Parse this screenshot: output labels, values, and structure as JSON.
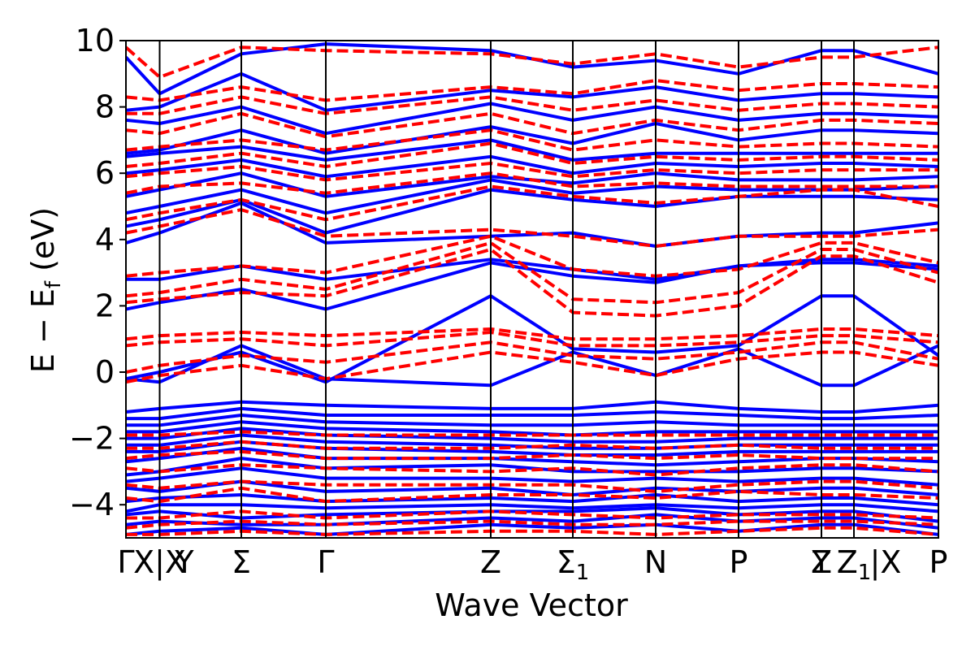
{
  "chart_data": {
    "type": "line",
    "xlabel": "Wave Vector",
    "ylabel_main": "E − E",
    "ylabel_sub": "f",
    "ylabel_unit": " (eV)",
    "ylim": [
      -5,
      10
    ],
    "yticks": [
      {
        "value": -4,
        "label": "−4"
      },
      {
        "value": -2,
        "label": "−2"
      },
      {
        "value": 0,
        "label": "0"
      },
      {
        "value": 2,
        "label": "2"
      },
      {
        "value": 4,
        "label": "4"
      },
      {
        "value": 6,
        "label": "6"
      },
      {
        "value": 8,
        "label": "8"
      },
      {
        "value": 10,
        "label": "10"
      }
    ],
    "xlim": [
      0,
      1
    ],
    "kpoints": [
      {
        "x": 0.0,
        "label": "Γ"
      },
      {
        "x": 0.0415,
        "label": "X|X"
      },
      {
        "x": 0.072,
        "label": "Y"
      },
      {
        "x": 0.142,
        "label": "Σ"
      },
      {
        "x": 0.246,
        "label": "Γ"
      },
      {
        "x": 0.449,
        "label": "Z"
      },
      {
        "x": 0.55,
        "label": "Σ",
        "sub": "1"
      },
      {
        "x": 0.652,
        "label": "N"
      },
      {
        "x": 0.754,
        "label": "P"
      },
      {
        "x": 0.856,
        "label": "Y"
      },
      {
        "x": 0.856,
        "label": "Z"
      },
      {
        "x": 0.896,
        "label": "Z",
        "sub": "1"
      },
      {
        "x": 0.935,
        "label": "|X"
      },
      {
        "x": 1.0,
        "label": "P"
      }
    ],
    "vlines": [
      0.0,
      0.0415,
      0.142,
      0.246,
      0.449,
      0.55,
      0.652,
      0.754,
      0.856,
      0.896,
      1.0
    ],
    "node_x": [
      0.0,
      0.0415,
      0.142,
      0.246,
      0.449,
      0.55,
      0.652,
      0.754,
      0.856,
      0.896,
      1.0
    ],
    "series": [
      {
        "style": "solid",
        "color": "#0000ff",
        "bands": [
          [
            -4.9,
            -4.8,
            -4.7,
            -4.9,
            -4.6,
            -4.7,
            -4.6,
            -4.8,
            -4.6,
            -4.6,
            -4.9
          ],
          [
            -4.6,
            -4.5,
            -4.6,
            -4.6,
            -4.4,
            -4.5,
            -4.3,
            -4.5,
            -4.4,
            -4.4,
            -4.7
          ],
          [
            -4.3,
            -4.2,
            -4.4,
            -4.3,
            -4.2,
            -4.2,
            -4.1,
            -4.3,
            -4.2,
            -4.2,
            -4.5
          ],
          [
            -4.2,
            -4.0,
            -4.0,
            -4.1,
            -4.0,
            -4.1,
            -4.0,
            -4.1,
            -4.0,
            -4.0,
            -4.2
          ],
          [
            -3.9,
            -3.8,
            -3.7,
            -3.9,
            -3.8,
            -3.9,
            -3.7,
            -3.9,
            -3.8,
            -3.8,
            -4.0
          ],
          [
            -3.5,
            -3.6,
            -3.3,
            -3.6,
            -3.5,
            -3.7,
            -3.5,
            -3.6,
            -3.5,
            -3.5,
            -3.7
          ],
          [
            -3.3,
            -3.2,
            -2.9,
            -3.2,
            -3.2,
            -3.3,
            -3.2,
            -3.3,
            -3.2,
            -3.2,
            -3.4
          ],
          [
            -3.1,
            -3.0,
            -2.6,
            -2.9,
            -2.8,
            -3.0,
            -3.0,
            -3.0,
            -2.9,
            -2.9,
            -3.0
          ],
          [
            -2.7,
            -2.6,
            -2.3,
            -2.6,
            -2.6,
            -2.7,
            -2.8,
            -2.7,
            -2.6,
            -2.6,
            -2.7
          ],
          [
            -2.4,
            -2.4,
            -2.1,
            -2.3,
            -2.4,
            -2.5,
            -2.5,
            -2.4,
            -2.4,
            -2.4,
            -2.4
          ],
          [
            -2.2,
            -2.2,
            -1.9,
            -2.1,
            -2.2,
            -2.3,
            -2.3,
            -2.2,
            -2.2,
            -2.2,
            -2.2
          ],
          [
            -2.0,
            -2.0,
            -1.7,
            -1.9,
            -2.0,
            -2.1,
            -2.1,
            -2.0,
            -2.0,
            -2.0,
            -2.0
          ],
          [
            -1.8,
            -1.8,
            -1.5,
            -1.7,
            -1.8,
            -1.9,
            -1.8,
            -1.8,
            -1.8,
            -1.8,
            -1.8
          ],
          [
            -1.6,
            -1.6,
            -1.3,
            -1.5,
            -1.6,
            -1.6,
            -1.5,
            -1.6,
            -1.6,
            -1.6,
            -1.6
          ],
          [
            -1.4,
            -1.4,
            -1.1,
            -1.3,
            -1.3,
            -1.3,
            -1.2,
            -1.3,
            -1.4,
            -1.4,
            -1.3
          ],
          [
            -1.2,
            -1.1,
            -0.9,
            -1.0,
            -1.1,
            -1.1,
            -0.9,
            -1.1,
            -1.2,
            -1.2,
            -1.0
          ],
          [
            -0.2,
            -0.3,
            0.8,
            -0.2,
            -0.4,
            0.6,
            -0.1,
            0.7,
            -0.4,
            -0.4,
            0.8
          ],
          [
            -0.2,
            0.0,
            0.6,
            -0.3,
            2.3,
            0.7,
            0.6,
            0.8,
            2.3,
            2.3,
            0.5
          ],
          [
            1.9,
            2.1,
            2.5,
            1.9,
            3.3,
            2.9,
            2.7,
            3.2,
            3.3,
            3.3,
            3.1
          ],
          [
            2.8,
            2.8,
            3.2,
            2.8,
            3.4,
            3.1,
            2.8,
            3.2,
            3.4,
            3.4,
            3.2
          ],
          [
            3.9,
            4.2,
            5.1,
            3.9,
            4.1,
            4.2,
            3.8,
            4.1,
            4.2,
            4.2,
            4.5
          ],
          [
            4.4,
            4.6,
            5.2,
            4.2,
            5.5,
            5.2,
            5.0,
            5.3,
            5.3,
            5.3,
            5.2
          ],
          [
            4.8,
            5.0,
            5.5,
            4.8,
            5.8,
            5.4,
            5.6,
            5.5,
            5.5,
            5.5,
            5.6
          ],
          [
            5.3,
            5.5,
            6.0,
            5.3,
            5.9,
            5.7,
            6.0,
            5.8,
            5.8,
            5.8,
            5.9
          ],
          [
            6.0,
            6.1,
            6.4,
            5.9,
            6.5,
            6.0,
            6.3,
            6.2,
            6.3,
            6.3,
            6.2
          ],
          [
            6.5,
            6.6,
            6.8,
            6.4,
            7.0,
            6.4,
            6.6,
            6.6,
            6.6,
            6.6,
            6.6
          ],
          [
            6.6,
            6.7,
            7.3,
            6.6,
            7.4,
            6.9,
            7.5,
            7.0,
            7.3,
            7.3,
            7.2
          ],
          [
            7.6,
            7.5,
            8.0,
            7.2,
            8.1,
            7.6,
            8.0,
            7.6,
            7.8,
            7.8,
            7.7
          ],
          [
            7.9,
            8.0,
            9.0,
            7.9,
            8.5,
            8.3,
            8.6,
            8.2,
            8.4,
            8.4,
            8.3
          ],
          [
            9.5,
            8.4,
            9.6,
            9.9,
            9.7,
            9.2,
            9.4,
            9.0,
            9.7,
            9.7,
            9.0
          ]
        ]
      },
      {
        "style": "dashed",
        "color": "#ff0000",
        "bands": [
          [
            -4.9,
            -4.9,
            -4.8,
            -4.9,
            -4.8,
            -4.8,
            -4.9,
            -4.8,
            -4.7,
            -4.7,
            -4.9
          ],
          [
            -4.7,
            -4.6,
            -4.5,
            -4.6,
            -4.5,
            -4.6,
            -4.6,
            -4.5,
            -4.5,
            -4.5,
            -4.6
          ],
          [
            -4.4,
            -4.4,
            -4.2,
            -4.4,
            -4.2,
            -4.3,
            -4.4,
            -4.3,
            -4.3,
            -4.3,
            -4.4
          ],
          [
            -3.8,
            -3.9,
            -3.5,
            -3.9,
            -3.7,
            -3.7,
            -3.8,
            -3.6,
            -3.7,
            -3.7,
            -3.8
          ],
          [
            -3.4,
            -3.5,
            -3.3,
            -3.4,
            -3.4,
            -3.4,
            -3.6,
            -3.4,
            -3.3,
            -3.3,
            -3.5
          ],
          [
            -2.9,
            -3.0,
            -2.8,
            -2.9,
            -3.0,
            -2.9,
            -3.1,
            -2.9,
            -2.8,
            -2.8,
            -3.0
          ],
          [
            -2.6,
            -2.5,
            -2.4,
            -2.6,
            -2.6,
            -2.5,
            -2.6,
            -2.5,
            -2.6,
            -2.6,
            -2.6
          ],
          [
            -2.3,
            -2.3,
            -2.1,
            -2.3,
            -2.3,
            -2.2,
            -2.3,
            -2.2,
            -2.3,
            -2.3,
            -2.3
          ],
          [
            -1.9,
            -1.9,
            -1.8,
            -1.9,
            -1.9,
            -1.9,
            -1.9,
            -1.9,
            -1.9,
            -1.9,
            -1.9
          ],
          [
            -0.3,
            -0.1,
            0.2,
            -0.2,
            0.6,
            0.3,
            -0.1,
            0.4,
            0.6,
            0.6,
            0.2
          ],
          [
            0.0,
            0.2,
            0.5,
            0.3,
            0.9,
            0.5,
            0.4,
            0.6,
            0.9,
            0.9,
            0.4
          ],
          [
            0.8,
            0.9,
            1.0,
            0.8,
            1.2,
            0.8,
            0.8,
            0.9,
            1.1,
            1.1,
            0.9
          ],
          [
            1.0,
            1.1,
            1.2,
            1.1,
            1.3,
            1.0,
            1.0,
            1.1,
            1.3,
            1.3,
            1.1
          ],
          [
            2.1,
            2.2,
            2.4,
            2.3,
            3.7,
            1.8,
            1.7,
            2.0,
            3.5,
            3.5,
            2.7
          ],
          [
            2.3,
            2.4,
            2.8,
            2.5,
            3.9,
            2.2,
            2.1,
            2.4,
            3.7,
            3.7,
            3.0
          ],
          [
            2.9,
            3.0,
            3.2,
            3.0,
            4.1,
            3.1,
            2.9,
            3.1,
            3.9,
            3.9,
            3.3
          ],
          [
            4.2,
            4.4,
            4.9,
            4.1,
            4.3,
            4.1,
            3.8,
            4.1,
            4.1,
            4.1,
            4.3
          ],
          [
            4.6,
            4.8,
            5.2,
            4.6,
            5.6,
            5.3,
            5.1,
            5.3,
            5.5,
            5.5,
            5.0
          ],
          [
            5.4,
            5.6,
            5.7,
            5.4,
            6.0,
            5.6,
            5.7,
            5.6,
            5.6,
            5.6,
            5.6
          ],
          [
            5.9,
            6.0,
            6.2,
            5.8,
            6.3,
            5.9,
            6.1,
            6.0,
            6.1,
            6.1,
            6.1
          ],
          [
            6.2,
            6.3,
            6.6,
            6.2,
            6.9,
            6.3,
            6.5,
            6.4,
            6.5,
            6.5,
            6.4
          ],
          [
            6.7,
            6.8,
            7.0,
            6.7,
            7.3,
            6.7,
            7.0,
            6.8,
            6.9,
            6.9,
            6.8
          ],
          [
            7.3,
            7.2,
            7.8,
            7.1,
            7.8,
            7.2,
            7.6,
            7.3,
            7.6,
            7.6,
            7.5
          ],
          [
            7.8,
            7.8,
            8.3,
            7.8,
            8.3,
            7.9,
            8.2,
            7.9,
            8.1,
            8.1,
            8.0
          ],
          [
            8.3,
            8.2,
            8.6,
            8.2,
            8.6,
            8.4,
            8.8,
            8.5,
            8.7,
            8.7,
            8.6
          ],
          [
            9.8,
            8.9,
            9.8,
            9.7,
            9.6,
            9.3,
            9.6,
            9.2,
            9.5,
            9.5,
            9.8
          ]
        ]
      }
    ]
  }
}
